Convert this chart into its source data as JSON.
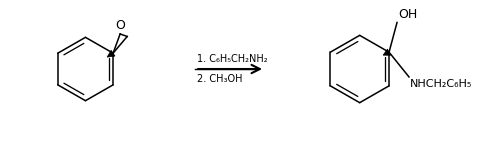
{
  "bg_color": "#ffffff",
  "reagent_line1": "1. C₆H₅CH₂NH₂",
  "reagent_line2": "2. CH₃OH",
  "oh_label": "OH",
  "nhch2_label": "NHCH₂C₆H₅",
  "lw": 1.1,
  "lw_bold": 3.0,
  "lw_double": 0.9
}
